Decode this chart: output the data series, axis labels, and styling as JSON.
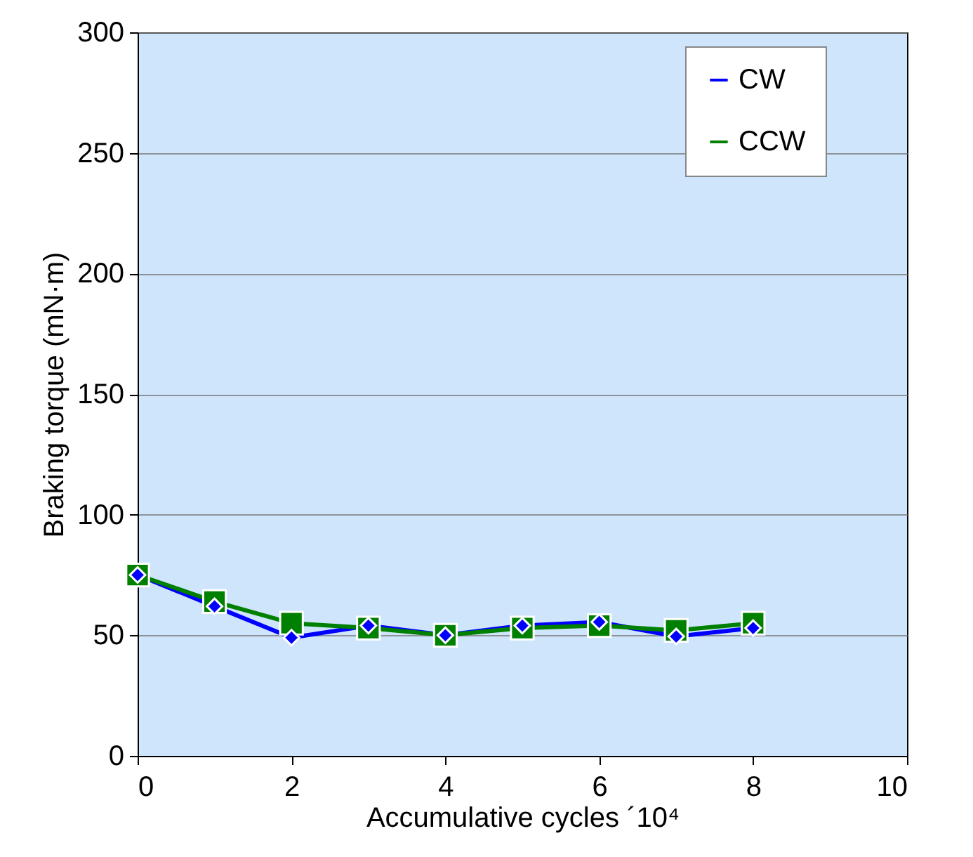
{
  "chart_data": {
    "type": "line",
    "xlabel": "Accumulative cycles ´10⁴",
    "ylabel": "Braking torque (mN·m)",
    "x": [
      0,
      1,
      2,
      3,
      4,
      5,
      6,
      7,
      8
    ],
    "series": [
      {
        "name": "CW",
        "color": "#0000ff",
        "marker": "diamond",
        "values": [
          75,
          62,
          49,
          54,
          50,
          54,
          55.5,
          49.5,
          53
        ]
      },
      {
        "name": "CCW",
        "color": "#008000",
        "marker": "square",
        "values": [
          75,
          64,
          55,
          53,
          50,
          53,
          54,
          52,
          55
        ]
      }
    ],
    "xlim": [
      0,
      10
    ],
    "xticks": [
      0,
      2,
      4,
      6,
      8,
      10
    ],
    "ylim": [
      0,
      300
    ],
    "yticks": [
      0,
      50,
      100,
      150,
      200,
      250,
      300
    ],
    "grid": "y",
    "legend": "top right",
    "line_style": "solid"
  }
}
